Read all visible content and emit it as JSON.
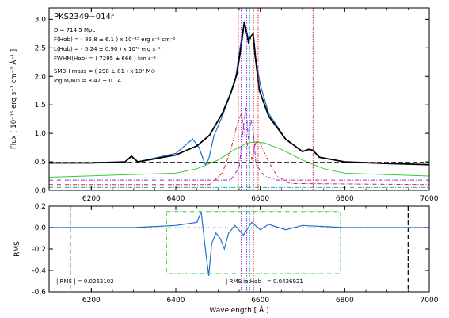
{
  "chart_data": [
    {
      "type": "line",
      "panel": "top",
      "object_name": "PKS2349−014r",
      "ylabel": "Flux [ 10⁻¹⁵ erg s⁻¹ cm⁻² Å⁻¹ ]",
      "xlim": [
        6100,
        7000
      ],
      "ylim": [
        0,
        3.2
      ],
      "x_ticks": [
        "6200",
        "6400",
        "6600",
        "6800",
        "7000"
      ],
      "y_ticks": [
        "0.0",
        "0.5",
        "1.0",
        "1.5",
        "2.0",
        "2.5",
        "3.0"
      ],
      "annotations": [
        "D = 714.5 Mpc",
        "F(Hαb) = ( 85.8 ± 6.1 ) x 10⁻¹⁵ erg s⁻¹ cm⁻²",
        "L(Hαb) = ( 5.24 ± 0.90 ) x 10⁴² erg s⁻¹",
        "FWHM(Hαb) = ( 7295 ± 666 ) km s⁻¹",
        "SMBH mass = ( 298 ± 81 ) x 10⁶ M⊙",
        "log M/M⊙ = 8.47 ± 0.14"
      ],
      "series": [
        {
          "color": "#1f6fd1",
          "x": [
            6100,
            6200,
            6280,
            6295,
            6310,
            6400,
            6440,
            6455,
            6470,
            6478,
            6490,
            6510,
            6525,
            6540,
            6550,
            6558,
            6563,
            6567,
            6572,
            6578,
            6584,
            6590,
            6600,
            6620,
            6660,
            6700,
            6715,
            6725,
            6740,
            6800,
            6900,
            7000
          ],
          "y": [
            0.48,
            0.48,
            0.5,
            0.6,
            0.5,
            0.65,
            0.9,
            0.75,
            0.45,
            0.55,
            0.95,
            1.3,
            1.6,
            1.9,
            2.4,
            2.8,
            2.95,
            2.82,
            2.65,
            2.7,
            2.75,
            2.3,
            1.85,
            1.35,
            0.9,
            0.68,
            0.72,
            0.7,
            0.58,
            0.5,
            0.47,
            0.45
          ]
        },
        {
          "color": "#000000",
          "x": [
            6100,
            6200,
            6280,
            6295,
            6310,
            6400,
            6450,
            6480,
            6510,
            6530,
            6545,
            6555,
            6562,
            6566,
            6572,
            6578,
            6583,
            6588,
            6598,
            6620,
            6660,
            6700,
            6715,
            6725,
            6740,
            6800,
            6900,
            7000
          ],
          "y": [
            0.48,
            0.48,
            0.5,
            0.6,
            0.5,
            0.62,
            0.78,
            0.97,
            1.35,
            1.7,
            2.05,
            2.55,
            2.95,
            2.82,
            2.6,
            2.7,
            2.75,
            2.35,
            1.75,
            1.3,
            0.9,
            0.68,
            0.72,
            0.7,
            0.58,
            0.5,
            0.47,
            0.45
          ]
        },
        {
          "color": "#30d030",
          "x": [
            6100,
            6400,
            6450,
            6500,
            6540,
            6570,
            6590,
            6610,
            6650,
            6700,
            6750,
            6800,
            7000
          ],
          "y": [
            0.23,
            0.3,
            0.38,
            0.53,
            0.72,
            0.83,
            0.85,
            0.83,
            0.72,
            0.53,
            0.38,
            0.3,
            0.25
          ]
        },
        {
          "color": "#e02020",
          "x": [
            6100,
            6480,
            6510,
            6530,
            6545,
            6555,
            6565,
            6580,
            6590,
            6600,
            6620,
            6640,
            6670,
            7000
          ],
          "y": [
            0.1,
            0.1,
            0.3,
            0.7,
            1.15,
            1.35,
            0.9,
            0.55,
            0.85,
            0.82,
            0.5,
            0.25,
            0.12,
            0.1
          ]
        },
        {
          "color": "#8a2be2",
          "x": [
            6100,
            6530,
            6550,
            6560,
            6566,
            6572,
            6578,
            6584,
            6590,
            6610,
            6640,
            7000
          ],
          "y": [
            0.18,
            0.18,
            0.4,
            1.1,
            1.45,
            0.9,
            1.25,
            1.0,
            0.45,
            0.25,
            0.18,
            0.18
          ]
        },
        {
          "color": "#00b8c0",
          "x": [
            6100,
            7000
          ],
          "y": [
            0.05,
            0.05
          ]
        },
        {
          "color": "#000000",
          "x": [
            6100,
            7000
          ],
          "y": [
            0.49,
            0.49
          ]
        }
      ],
      "vlines": [
        {
          "x": 6548,
          "color": "#e02020"
        },
        {
          "x": 6555,
          "color": "#8a2be2"
        },
        {
          "x": 6568,
          "color": "#8a2be2"
        },
        {
          "x": 6575,
          "color": "#00b8c0"
        },
        {
          "x": 6584,
          "color": "#e02020"
        },
        {
          "x": 6595,
          "color": "#e02020"
        },
        {
          "x": 6725,
          "color": "#e02020"
        }
      ]
    },
    {
      "type": "line",
      "panel": "bottom",
      "xlabel": "Wavelength [ Å ]",
      "ylabel": "RMS",
      "xlim": [
        6100,
        7000
      ],
      "ylim": [
        -0.6,
        0.2
      ],
      "x_ticks": [
        "6200",
        "6400",
        "6600",
        "6800",
        "7000"
      ],
      "y_ticks": [
        "-0.6",
        "-0.4",
        "-0.2",
        "0.0",
        "0.2"
      ],
      "annotations": [
        "| RMS | = 0.0262102",
        "| RMS in Hαb | = 0.0426921"
      ],
      "series": [
        {
          "color": "#1f6fd1",
          "x": [
            6100,
            6300,
            6400,
            6450,
            6460,
            6470,
            6478,
            6485,
            6495,
            6505,
            6515,
            6525,
            6540,
            6560,
            6580,
            6600,
            6620,
            6660,
            6700,
            6800,
            7000
          ],
          "y": [
            0.0,
            0.0,
            0.02,
            0.05,
            0.15,
            -0.2,
            -0.45,
            -0.15,
            -0.05,
            -0.1,
            -0.2,
            -0.05,
            0.02,
            -0.07,
            0.05,
            -0.02,
            0.03,
            -0.02,
            0.02,
            0.0,
            0.0
          ]
        }
      ],
      "vlines": [
        {
          "x": 6150,
          "color": "#000000"
        },
        {
          "x": 6555,
          "color": "#8a2be2"
        },
        {
          "x": 6568,
          "color": "#8a2be2"
        },
        {
          "x": 6575,
          "color": "#00b8c0"
        },
        {
          "x": 6584,
          "color": "#e02020"
        },
        {
          "x": 6950,
          "color": "#000000"
        }
      ],
      "box": {
        "x": [
          6378,
          6790
        ],
        "y": [
          -0.43,
          0.15
        ],
        "color": "#30d030"
      }
    }
  ]
}
